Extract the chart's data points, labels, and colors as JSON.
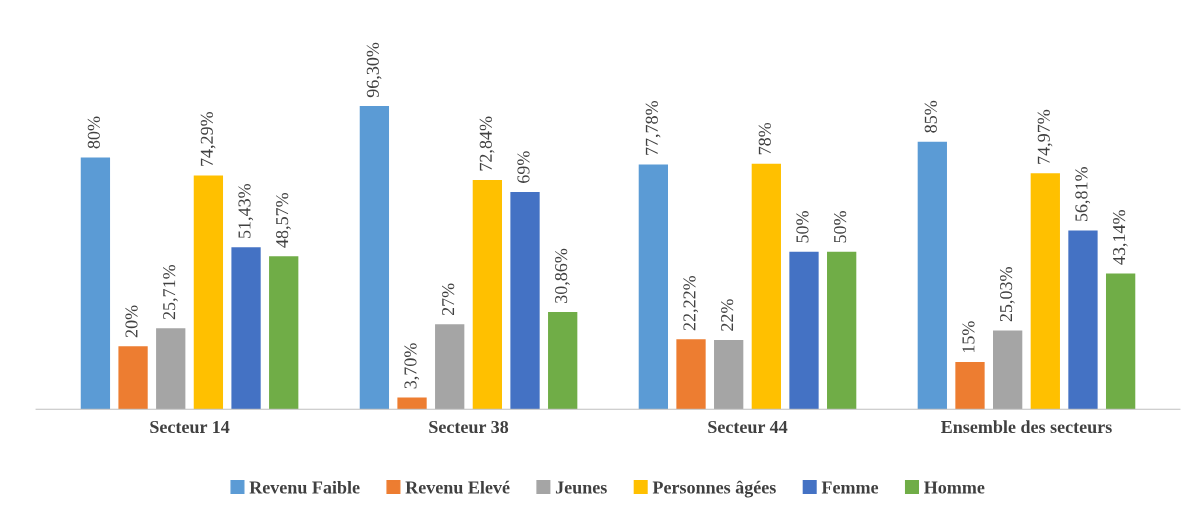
{
  "chart_data": {
    "type": "bar",
    "categories": [
      "Secteur 14",
      "Secteur 38",
      "Secteur 44",
      "Ensemble des secteurs"
    ],
    "series": [
      {
        "name": "Revenu Faible",
        "color": "#5b9bd5",
        "values": [
          80,
          96.3,
          77.78,
          85
        ],
        "value_labels": [
          "80%",
          "96,30%",
          "77,78%",
          "85%"
        ]
      },
      {
        "name": "Revenu Elevé",
        "color": "#ed7d31",
        "values": [
          20,
          3.7,
          22.22,
          15
        ],
        "value_labels": [
          "20%",
          "3,70%",
          "22,22%",
          "15%"
        ]
      },
      {
        "name": "Jeunes",
        "color": "#a5a5a5",
        "values": [
          25.71,
          27,
          22,
          25.03
        ],
        "value_labels": [
          "25,71%",
          "27%",
          "22%",
          "25,03%"
        ]
      },
      {
        "name": "Personnes âgées",
        "color": "#ffc000",
        "values": [
          74.29,
          72.84,
          78,
          74.97
        ],
        "value_labels": [
          "74,29%",
          "72,84%",
          "78%",
          "74,97%"
        ]
      },
      {
        "name": "Femme",
        "color": "#4472c4",
        "values": [
          51.43,
          69,
          50,
          56.81
        ],
        "value_labels": [
          "51,43%",
          "69%",
          "50%",
          "56,81%"
        ]
      },
      {
        "name": "Homme",
        "color": "#70ad47",
        "values": [
          48.57,
          30.86,
          50,
          43.14
        ],
        "value_labels": [
          "48,57%",
          "30,86%",
          "50%",
          "43,14%"
        ]
      }
    ],
    "legend": "bottom",
    "grid": false
  }
}
